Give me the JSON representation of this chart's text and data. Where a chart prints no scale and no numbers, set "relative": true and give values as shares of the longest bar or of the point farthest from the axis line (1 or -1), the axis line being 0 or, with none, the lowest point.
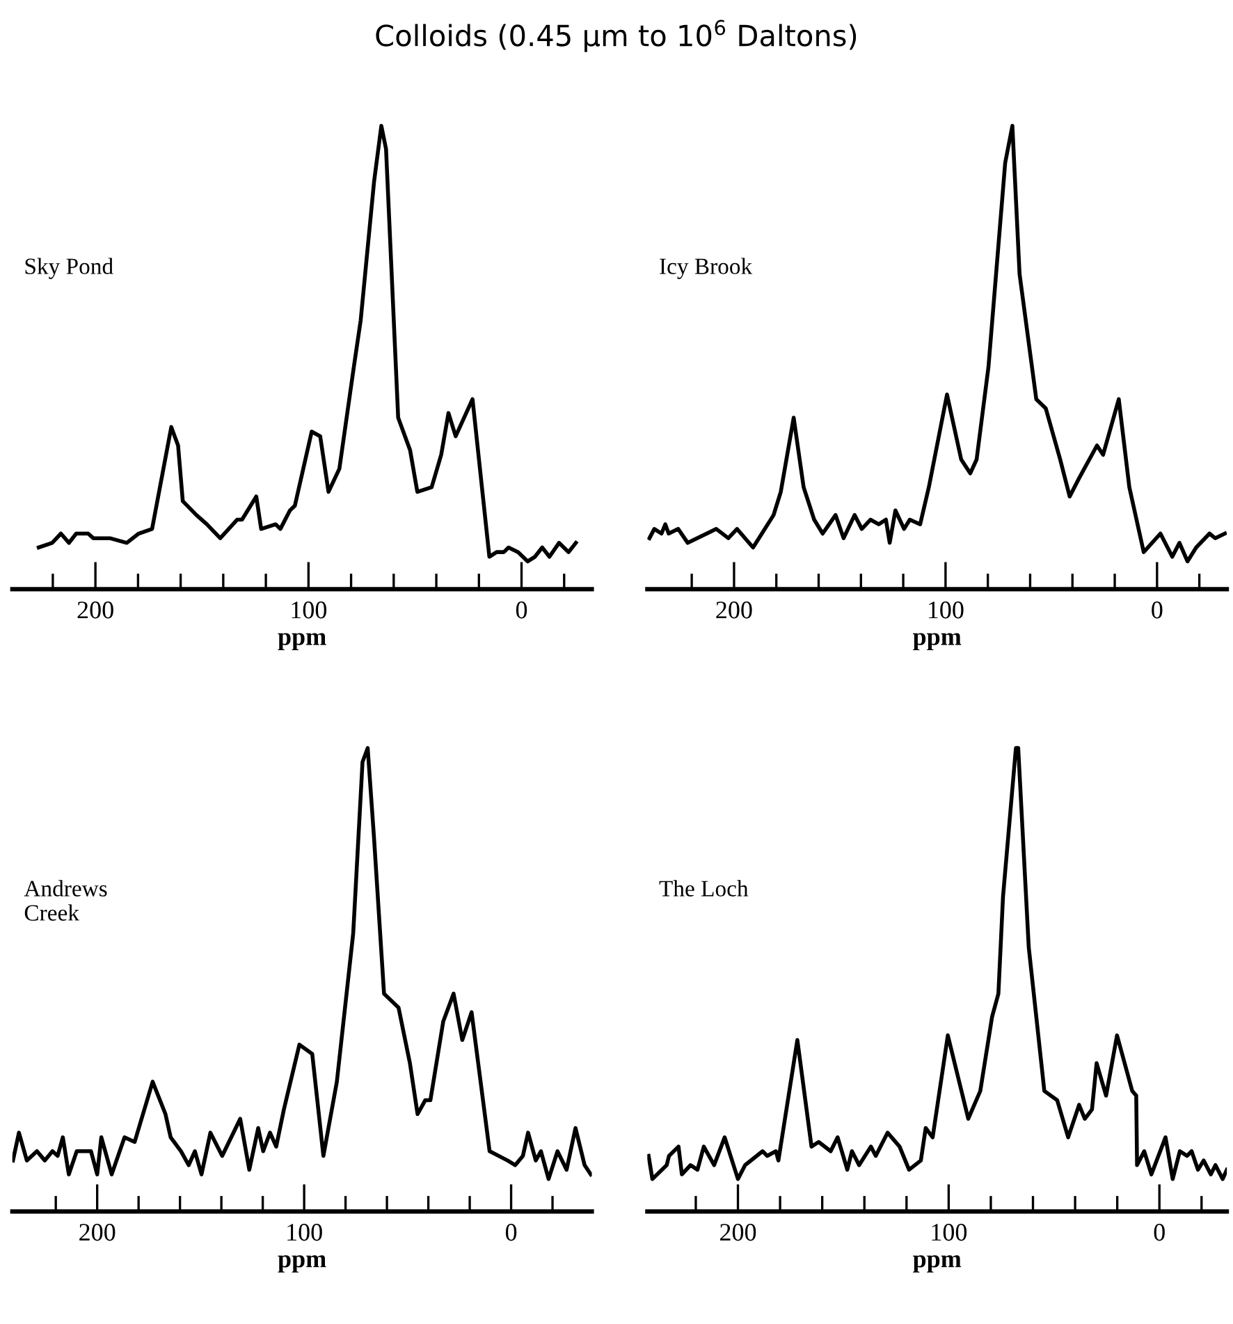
{
  "chart_data": [
    {
      "type": "line",
      "title": "Colloids (0.45 μm to 10$^{6}$ Daltons)",
      "xlabel": "ppm",
      "annotations": [
        "Sky Pond"
      ],
      "relative": true,
      "tick_labels": "x",
      "xlim": [
        239,
        -33
      ],
      "xticks": [
        {
          "value": 220,
          "label": null
        },
        200,
        {
          "value": 180,
          "label": null
        },
        {
          "value": 160,
          "label": null
        },
        {
          "value": 140,
          "label": null
        },
        {
          "value": 120,
          "label": null
        },
        100,
        {
          "value": 80,
          "label": null
        },
        {
          "value": 60,
          "label": null
        },
        {
          "value": 40,
          "label": null
        },
        {
          "value": 20,
          "label": null
        },
        0,
        {
          "value": -20,
          "label": null
        }
      ],
      "series": [
        {
          "color": "#000000",
          "x": [
            226.6,
            220.3,
            216.2,
            212.4,
            209,
            203.4,
            201,
            196.7,
            193.2,
            185.3,
            179.7,
            173.4,
            164.4,
            161.2,
            159,
            152.6,
            147.7,
            141.4,
            133.5,
            131.2,
            124.5,
            122.2,
            115.4,
            113.2,
            108.7,
            106.4,
            98.5,
            94.5,
            90.6,
            85.5,
            78.7,
            75.5,
            69.2,
            65.8,
            63.6,
            57.9,
            52.3,
            48.9,
            42.2,
            37.7,
            34.3,
            30.9,
            23.0,
            15.1,
            11.7,
            8.3,
            6.1,
            1.6,
            -2.9,
            -6.3,
            -9.7,
            -13.1,
            -17.6,
            -22.1,
            -25.5
          ],
          "values": [
            0.09,
            0.1,
            0.12,
            0.1,
            0.12,
            0.12,
            0.11,
            0.11,
            0.11,
            0.1,
            0.12,
            0.13,
            0.35,
            0.31,
            0.19,
            0.16,
            0.14,
            0.11,
            0.15,
            0.15,
            0.2,
            0.13,
            0.14,
            0.13,
            0.17,
            0.18,
            0.34,
            0.33,
            0.21,
            0.26,
            0.48,
            0.58,
            0.88,
            1.0,
            0.95,
            0.37,
            0.3,
            0.21,
            0.22,
            0.29,
            0.38,
            0.33,
            0.41,
            0.07,
            0.08,
            0.08,
            0.09,
            0.08,
            0.06,
            0.07,
            0.09,
            0.07,
            0.1,
            0.08,
            0.1
          ]
        }
      ]
    },
    {
      "type": "line",
      "xlabel": "ppm",
      "annotations": [
        "Icy Brook"
      ],
      "relative": true,
      "tick_labels": "x",
      "xlim": [
        241,
        -33
      ],
      "xticks": [
        {
          "value": 220,
          "label": null
        },
        200,
        {
          "value": 180,
          "label": null
        },
        {
          "value": 160,
          "label": null
        },
        {
          "value": 140,
          "label": null
        },
        {
          "value": 120,
          "label": null
        },
        100,
        {
          "value": 80,
          "label": null
        },
        {
          "value": 60,
          "label": null
        },
        {
          "value": 40,
          "label": null
        },
        {
          "value": 20,
          "label": null
        },
        0,
        {
          "value": -20,
          "label": null
        }
      ],
      "series": [
        {
          "color": "#000000",
          "x": [
            240.0,
            237.7,
            234.3,
            232.5,
            230.9,
            226.4,
            221.9,
            208.4,
            202.7,
            198.6,
            191.0,
            181.3,
            177.9,
            171.8,
            167.1,
            162.1,
            158.1,
            152.0,
            148.2,
            143.0,
            139.6,
            135.5,
            131.6,
            128.2,
            126.4,
            123.7,
            119.6,
            116.9,
            112.0,
            107.9,
            99.3,
            92.6,
            88.3,
            85.3,
            79.7,
            71.8,
            68.4,
            65.0,
            57.1,
            52.6,
            45.8,
            41.3,
            36.8,
            28.4,
            25.5,
            18.1,
            13.1,
            6.3,
            -1.6,
            -7.2,
            -10.6,
            -14.4,
            -18.5,
            -24.8,
            -27.5,
            -32.1
          ],
          "values": [
            0.11,
            0.13,
            0.12,
            0.14,
            0.12,
            0.13,
            0.1,
            0.13,
            0.11,
            0.13,
            0.09,
            0.16,
            0.21,
            0.37,
            0.22,
            0.15,
            0.12,
            0.16,
            0.11,
            0.16,
            0.13,
            0.15,
            0.14,
            0.15,
            0.1,
            0.17,
            0.13,
            0.15,
            0.14,
            0.22,
            0.42,
            0.28,
            0.25,
            0.28,
            0.48,
            0.92,
            1.0,
            0.68,
            0.41,
            0.39,
            0.28,
            0.2,
            0.24,
            0.31,
            0.29,
            0.41,
            0.22,
            0.08,
            0.12,
            0.07,
            0.1,
            0.06,
            0.09,
            0.12,
            0.11,
            0.12
          ]
        }
      ]
    },
    {
      "type": "line",
      "xlabel": "ppm",
      "annotations": [
        "Andrews\nCreek"
      ],
      "relative": true,
      "tick_labels": "x",
      "xlim": [
        241,
        -39
      ],
      "xticks": [
        {
          "value": 220,
          "label": null
        },
        200,
        {
          "value": 180,
          "label": null
        },
        {
          "value": 160,
          "label": null
        },
        {
          "value": 140,
          "label": null
        },
        {
          "value": 120,
          "label": null
        },
        100,
        {
          "value": 80,
          "label": null
        },
        {
          "value": 60,
          "label": null
        },
        {
          "value": 40,
          "label": null
        },
        {
          "value": 20,
          "label": null
        },
        0,
        {
          "value": -20,
          "label": null
        }
      ],
      "series": [
        {
          "color": "#000000",
          "x": [
            240.7,
            237.8,
            234.0,
            229.1,
            225.3,
            221.6,
            219.1,
            216.6,
            213.7,
            209.9,
            203.0,
            200.0,
            198.0,
            193.0,
            186.8,
            181.9,
            173.2,
            167.0,
            164.5,
            159.5,
            155.8,
            152.8,
            149.6,
            145.3,
            139.6,
            130.9,
            126.5,
            122.2,
            119.8,
            116.5,
            113.5,
            109.8,
            102.3,
            96.1,
            90.7,
            84.2,
            76.3,
            71.8,
            69.3,
            66.3,
            61.4,
            54.4,
            48.9,
            45.2,
            41.5,
            39.0,
            32.8,
            27.8,
            23.6,
            19.1,
            10.4,
            1.7,
            -2.0,
            -5.7,
            -8.2,
            -11.9,
            -14.4,
            -18.1,
            -22.4,
            -26.8,
            -31.1,
            -35.5,
            -38.5
          ],
          "values": [
            0.11,
            0.17,
            0.11,
            0.13,
            0.11,
            0.13,
            0.12,
            0.16,
            0.08,
            0.13,
            0.13,
            0.08,
            0.16,
            0.08,
            0.16,
            0.15,
            0.28,
            0.21,
            0.16,
            0.13,
            0.1,
            0.13,
            0.08,
            0.17,
            0.12,
            0.2,
            0.09,
            0.18,
            0.13,
            0.17,
            0.14,
            0.22,
            0.36,
            0.34,
            0.12,
            0.28,
            0.6,
            0.97,
            1.0,
            0.81,
            0.47,
            0.44,
            0.32,
            0.21,
            0.24,
            0.24,
            0.41,
            0.47,
            0.37,
            0.43,
            0.13,
            0.11,
            0.1,
            0.12,
            0.17,
            0.11,
            0.13,
            0.07,
            0.13,
            0.09,
            0.18,
            0.1,
            0.08
          ]
        }
      ]
    },
    {
      "type": "line",
      "xlabel": "ppm",
      "annotations": [
        "The Loch"
      ],
      "relative": true,
      "tick_labels": "x",
      "xlim": [
        243,
        -32
      ],
      "xticks": [
        {
          "value": 220,
          "label": null
        },
        200,
        {
          "value": 180,
          "label": null
        },
        {
          "value": 160,
          "label": null
        },
        {
          "value": 140,
          "label": null
        },
        {
          "value": 120,
          "label": null
        },
        100,
        {
          "value": 80,
          "label": null
        },
        {
          "value": 60,
          "label": null
        },
        {
          "value": 40,
          "label": null
        },
        {
          "value": 20,
          "label": null
        },
        0,
        {
          "value": -20,
          "label": null
        }
      ],
      "series": [
        {
          "color": "#000000",
          "x": [
            242.4,
            240.6,
            233.8,
            232.7,
            228.2,
            226.6,
            222.5,
            219.2,
            216.2,
            211.3,
            206.3,
            200.0,
            196.6,
            188.3,
            186.1,
            182.0,
            180.8,
            171.8,
            165.1,
            161.7,
            156.0,
            152.7,
            148.1,
            145.9,
            142.5,
            136.9,
            134.6,
            129.0,
            123.3,
            118.8,
            113.2,
            110.9,
            107.6,
            100.4,
            90.7,
            85.0,
            79.4,
            76.4,
            74.2,
            68.1,
            67.0,
            62.0,
            54.6,
            48.5,
            43.3,
            38.1,
            35.4,
            32.0,
            29.8,
            25.3,
            20.1,
            12.9,
            11.0,
            10.6,
            7.2,
            3.8,
            -2.9,
            -6.3,
            -9.7,
            -13.1,
            -15.3,
            -18.3,
            -21.0,
            -24.4,
            -26.6,
            -30.0,
            -32.0
          ],
          "values": [
            0.12,
            0.07,
            0.1,
            0.12,
            0.14,
            0.08,
            0.1,
            0.09,
            0.14,
            0.1,
            0.16,
            0.07,
            0.1,
            0.13,
            0.12,
            0.13,
            0.11,
            0.37,
            0.14,
            0.15,
            0.13,
            0.16,
            0.09,
            0.13,
            0.1,
            0.14,
            0.12,
            0.17,
            0.14,
            0.09,
            0.11,
            0.18,
            0.16,
            0.38,
            0.2,
            0.26,
            0.42,
            0.47,
            0.68,
            1.0,
            1.0,
            0.57,
            0.26,
            0.24,
            0.16,
            0.23,
            0.2,
            0.22,
            0.32,
            0.25,
            0.38,
            0.26,
            0.25,
            0.1,
            0.13,
            0.08,
            0.16,
            0.07,
            0.13,
            0.12,
            0.13,
            0.09,
            0.11,
            0.08,
            0.1,
            0.07,
            0.09
          ]
        }
      ]
    }
  ]
}
